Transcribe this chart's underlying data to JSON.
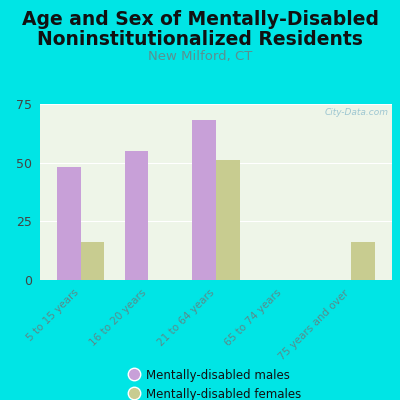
{
  "title_line1": "Age and Sex of Mentally-Disabled",
  "title_line2": "Noninstitutionalized Residents",
  "subtitle": "New Milford, CT",
  "categories": [
    "5 to 15 years",
    "16 to 20 years",
    "21 to 64 years",
    "65 to 74 years",
    "75 years and over"
  ],
  "males": [
    48,
    55,
    68,
    0,
    0
  ],
  "females": [
    16,
    0,
    51,
    0,
    16
  ],
  "male_color": "#C8A0D8",
  "female_color": "#C8CC90",
  "bg_color": "#00E5E5",
  "plot_bg_color": "#EEF5E8",
  "ylim": [
    0,
    75
  ],
  "yticks": [
    0,
    25,
    50,
    75
  ],
  "title_fontsize": 13.5,
  "subtitle_fontsize": 9.5,
  "watermark": "City-Data.com",
  "bar_width": 0.35,
  "legend_male": "Mentally-disabled males",
  "legend_female": "Mentally-disabled females",
  "tick_color": "#5A8A8A",
  "subtitle_color": "#5A9090",
  "ytick_color": "#444444"
}
